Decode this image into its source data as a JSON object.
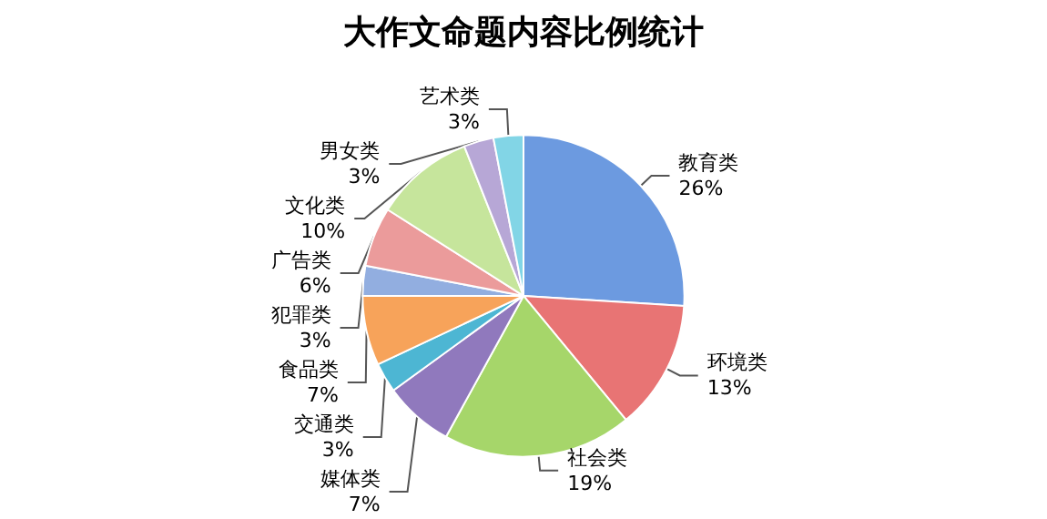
{
  "chart_data": {
    "type": "pie",
    "title": "大作文命题内容比例统计",
    "categories": [
      "教育类",
      "环境类",
      "社会类",
      "媒体类",
      "交通类",
      "食品类",
      "犯罪类",
      "广告类",
      "文化类",
      "男女类",
      "艺术类"
    ],
    "values": [
      26,
      13,
      19,
      7,
      3,
      7,
      3,
      6,
      10,
      3,
      3
    ],
    "value_labels": [
      "26%",
      "13%",
      "19%",
      "7%",
      "3%",
      "7%",
      "3%",
      "6%",
      "10%",
      "3%",
      "3%"
    ],
    "colors": [
      "#6c9ae0",
      "#e87474",
      "#a6d66a",
      "#9079bd",
      "#4db6d3",
      "#f7a35a",
      "#92aee0",
      "#eb9b9b",
      "#c6e59c",
      "#b7a7d6",
      "#82d5e6"
    ],
    "legend": false
  }
}
